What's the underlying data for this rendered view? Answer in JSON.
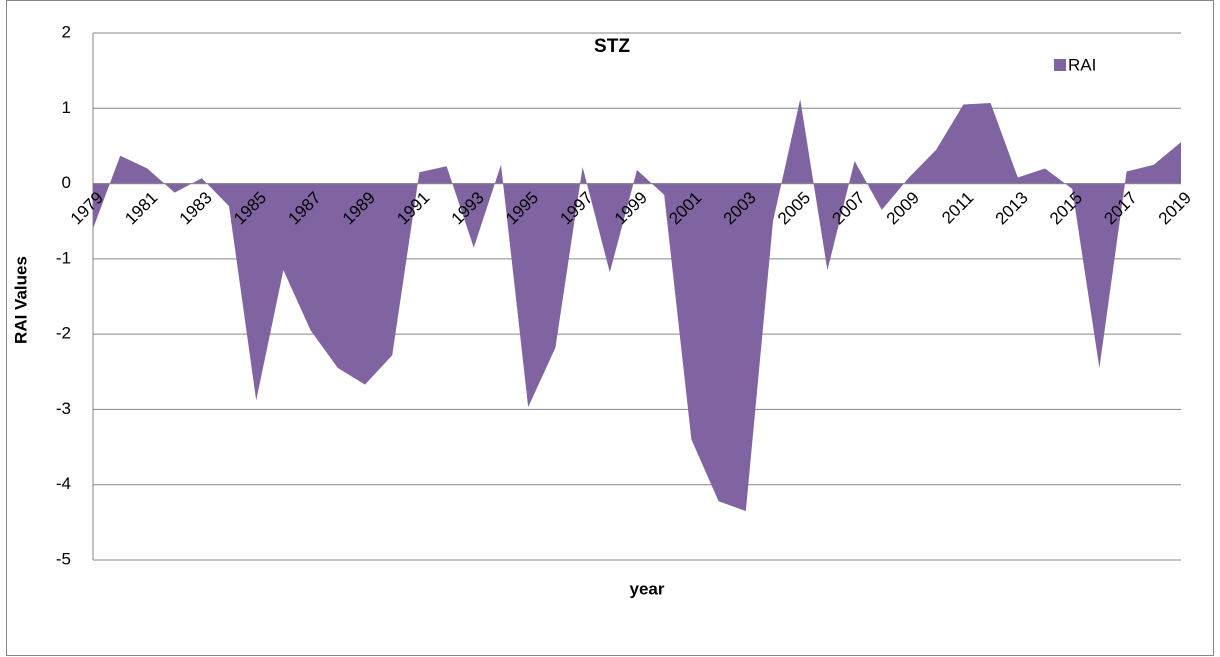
{
  "chart_data": {
    "type": "area",
    "title": "STZ",
    "x_label": "year",
    "y_label": "RAI  Values",
    "categories": [
      "1979",
      null,
      "1981",
      null,
      "1983",
      null,
      "1985",
      null,
      "1987",
      null,
      "1989",
      null,
      "1991",
      null,
      "1993",
      null,
      "1995",
      null,
      "1997",
      null,
      "1999",
      null,
      "2001",
      null,
      "2003",
      null,
      "2005",
      null,
      "2007",
      null,
      "2009",
      null,
      "2011",
      null,
      "2013",
      null,
      "2015",
      null,
      "2017",
      null,
      "2019"
    ],
    "series": [
      {
        "name": "RAI",
        "color": "#8064a2",
        "values": [
          -0.6,
          0.37,
          0.2,
          -0.12,
          0.07,
          -0.3,
          -2.88,
          -1.15,
          -1.95,
          -2.45,
          -2.67,
          -2.28,
          0.15,
          0.23,
          -0.85,
          0.25,
          -2.97,
          -2.18,
          0.22,
          -1.18,
          0.18,
          -0.15,
          -3.4,
          -4.22,
          -4.35,
          -0.5,
          1.12,
          -1.15,
          0.3,
          -0.35,
          0.08,
          0.45,
          1.05,
          1.07,
          0.08,
          0.2,
          -0.07,
          -2.45,
          0.16,
          0.25,
          0.55
        ]
      }
    ],
    "ylim": [
      -5,
      2
    ],
    "yticks": [
      -5,
      -4,
      -3,
      -2,
      -1,
      0,
      1,
      2
    ],
    "grid": true,
    "legend": "top-right"
  }
}
